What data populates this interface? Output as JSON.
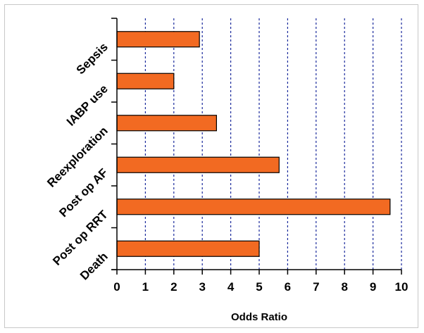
{
  "chart_data": {
    "type": "bar",
    "orientation": "horizontal",
    "categories": [
      "Sepsis",
      "IABP use",
      "Reexploration",
      "Post op AF",
      "Post op RRT",
      "Death"
    ],
    "values": [
      2.9,
      2.0,
      3.5,
      5.7,
      9.6,
      5.0
    ],
    "title": "",
    "xlabel": "Odds Ratio",
    "ylabel": "",
    "xlim": [
      0,
      10
    ],
    "x_ticks": [
      "0",
      "1",
      "2",
      "3",
      "4",
      "5",
      "6",
      "7",
      "8",
      "9",
      "10"
    ],
    "grid": "vertical dashed",
    "legend": "none",
    "bar_color": "#f26a22",
    "bar_edge_color": "#000000",
    "grid_color": "#1a2a9c"
  }
}
